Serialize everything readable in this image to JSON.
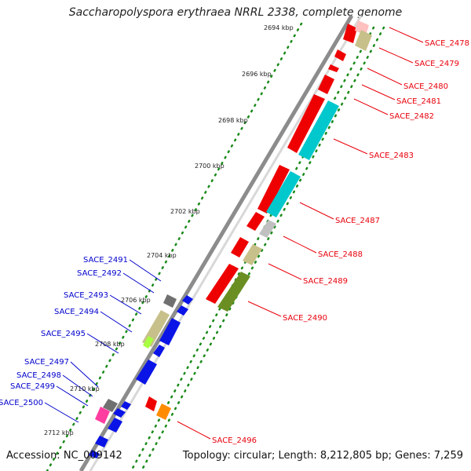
{
  "header": {
    "title": "Saccharopolyspora erythraea NRRL 2338, complete genome"
  },
  "footer": {
    "accession": "Accession: NC_009142",
    "summary": "Topology: circular; Length: 8,212,805 bp; Genes: 7,259"
  },
  "scale": {
    "ticks": [
      "2694 kbp",
      "2696 kbp",
      "2698 kbp",
      "2700 kbp",
      "2702 kbp",
      "2704 kbp",
      "2706 kbp",
      "2708 kbp",
      "2710 kbp",
      "2712 kbp"
    ]
  },
  "genes": {
    "forward": [
      "SACE_2478",
      "SACE_2479",
      "SACE_2480",
      "SACE_2481",
      "SACE_2482",
      "SACE_2483",
      "SACE_2487",
      "SACE_2488",
      "SACE_2489",
      "SACE_2490",
      "SACE_2496"
    ],
    "reverse": [
      "SACE_2491",
      "SACE_2492",
      "SACE_2493",
      "SACE_2494",
      "SACE_2495",
      "SACE_2497",
      "SACE_2498",
      "SACE_2499",
      "SACE_2500"
    ]
  },
  "colors": {
    "forward_label": "#e8000b",
    "reverse_label": "#0000cc",
    "backbone": "#8c8c8c",
    "tick_dots": "#1a8a1a",
    "red": "#ee0000",
    "cyan": "#00c8cc",
    "khaki": "#c8c08a",
    "gray": "#c0c0c0",
    "darkgray": "#707070",
    "olive": "#6b8e23",
    "blue": "#0a14e6",
    "magenta": "#ff3ca0",
    "lime": "#a8ff40",
    "orange": "#ff8c00",
    "pink": "#ffc0c0"
  }
}
